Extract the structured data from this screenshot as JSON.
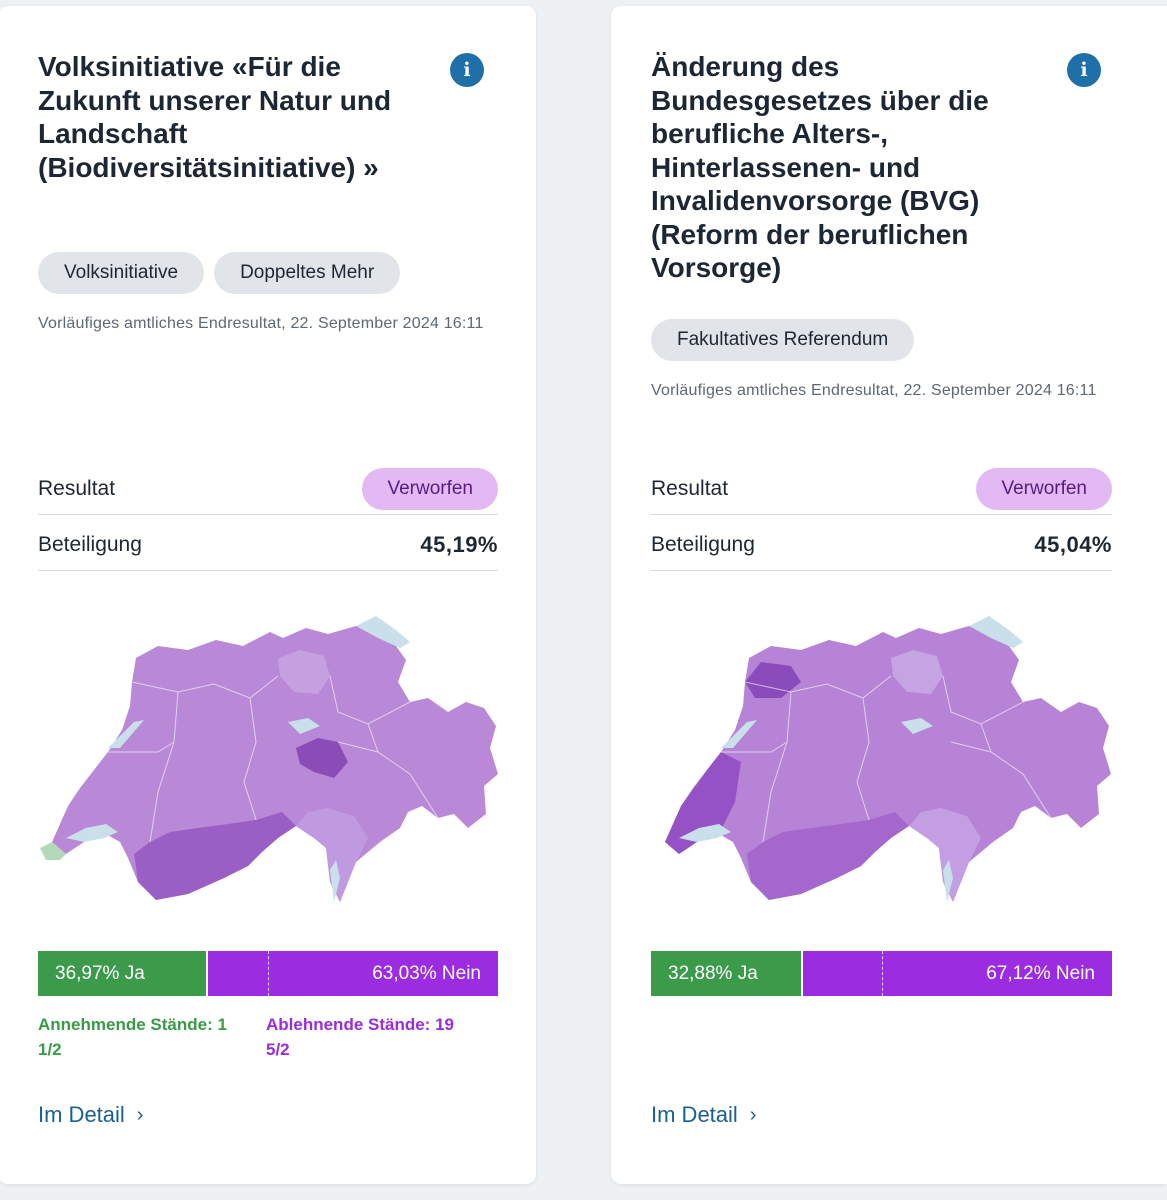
{
  "cards": [
    {
      "title": "Volksinitiative «Für die Zukunft unserer Natur und Landschaft (Biodiversitätsinitiative) »",
      "info_icon": "i",
      "tags": [
        "Volksinitiative",
        "Doppeltes Mehr"
      ],
      "timestamp": "Vorläufiges amtliches Endresultat, 22. September 2024 16:11",
      "result_label": "Resultat",
      "result_value": "Verworfen",
      "participation_label": "Beteiligung",
      "participation_value": "45,19%",
      "yes_share": 36.97,
      "yes_label": "36,97% Ja",
      "no_label": "63,03% Nein",
      "yes_states": "Annehmende Stände: 1 1/2",
      "no_states": "Ablehnende Stände: 19 5/2",
      "detail_link": "Im Detail"
    },
    {
      "title": "Änderung des Bundesgesetzes über die berufliche Alters-, Hinterlassenen- und Invalidenvorsorge (BVG) (Reform der beruflichen Vorsorge)",
      "info_icon": "i",
      "tags": [
        "Fakultatives Referendum"
      ],
      "timestamp": "Vorläufiges amtliches Endresultat, 22. September 2024 16:11",
      "result_label": "Resultat",
      "result_value": "Verworfen",
      "participation_label": "Beteiligung",
      "participation_value": "45,04%",
      "yes_share": 32.88,
      "yes_label": "32,88% Ja",
      "no_label": "67,12% Nein",
      "detail_link": "Im Detail"
    }
  ],
  "colors": {
    "yes": "#3c9b4a",
    "no": "#9b2ce0",
    "verworfen_bg": "#e3b9f4",
    "link": "#1a5f92",
    "info": "#1f6fa8",
    "lake": "#c9dfe9"
  }
}
